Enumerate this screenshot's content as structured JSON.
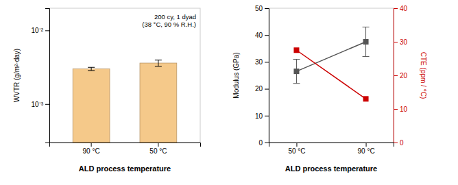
{
  "chart_data": [
    {
      "type": "bar",
      "categories": [
        "90 °C",
        "50 °C"
      ],
      "values": [
        0.003,
        0.0036
      ],
      "errors": [
        0.00015,
        0.00035
      ],
      "color": "#F5C98A",
      "log": "y",
      "ylim": [
        0.0003,
        0.02
      ],
      "yticks": [
        {
          "value": 0.001,
          "label": "10⁻³"
        },
        {
          "value": 0.01,
          "label": "10⁻²"
        }
      ],
      "ylabel": "WVTR (g/m²·day)",
      "xlabel": "ALD process temperature",
      "annotations": [
        "200 cy, 1 dyad",
        "(38 °C, 90 % R.H.)"
      ]
    },
    {
      "type": "line",
      "categories": [
        "50 °C",
        "90 °C"
      ],
      "series": [
        {
          "color": "#555555",
          "values": [
            26.5,
            37.5
          ],
          "errors": [
            4.5,
            5.5
          ],
          "marker": "square"
        },
        {
          "color": "#cc0000",
          "values": [
            27.5,
            13.0
          ],
          "axis": "y2",
          "marker": "square"
        }
      ],
      "ylim": [
        0,
        50
      ],
      "yticks": [
        0,
        10,
        20,
        30,
        40,
        50
      ],
      "y2lim": [
        0,
        40
      ],
      "y2ticks": [
        0,
        10,
        20,
        30,
        40
      ],
      "ylabel": "Modulus (GPa)",
      "y2label": "CTE (ppm / °C)",
      "xlabel": "ALD process temperature"
    }
  ]
}
